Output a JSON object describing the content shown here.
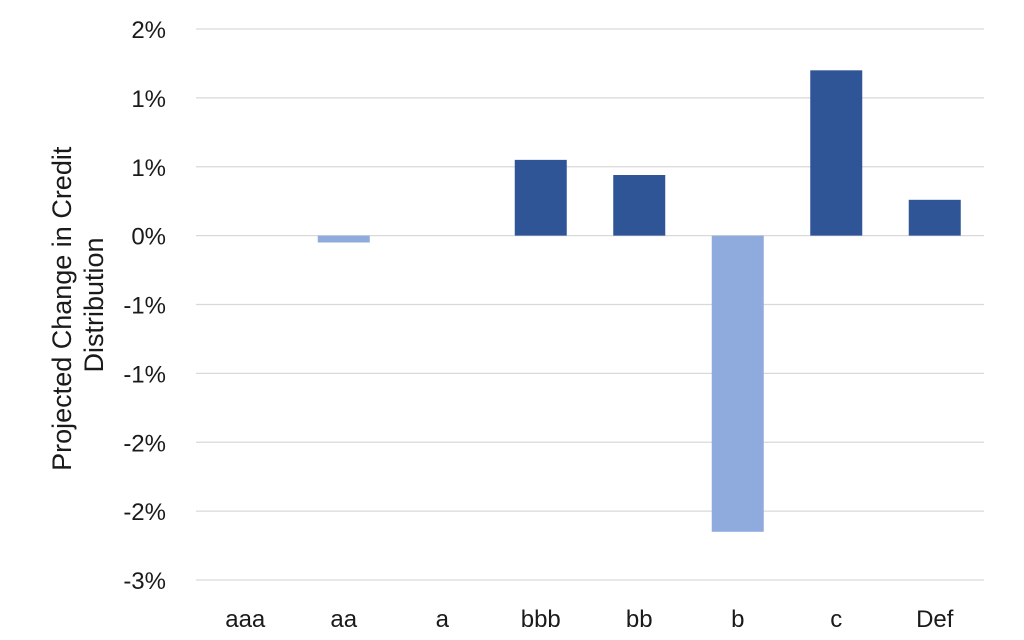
{
  "chart_data": {
    "type": "bar",
    "categories": [
      "aaa",
      "aa",
      "a",
      "bbb",
      "bb",
      "b",
      "c",
      "Def"
    ],
    "values": [
      0,
      -0.05,
      0,
      0.55,
      0.44,
      -2.15,
      1.2,
      0.26
    ],
    "ylabel_lines": [
      "Projected Change in Credit",
      "Distribution"
    ],
    "xlabel": "",
    "ylim": [
      -2.5,
      1.5
    ],
    "y_ticks": [
      {
        "value": 1.5,
        "label": "2%"
      },
      {
        "value": 1.0,
        "label": "1%"
      },
      {
        "value": 0.5,
        "label": "1%"
      },
      {
        "value": 0.0,
        "label": "0%"
      },
      {
        "value": -0.5,
        "label": "-1%"
      },
      {
        "value": -1.0,
        "label": "-1%"
      },
      {
        "value": -1.5,
        "label": "-2%"
      },
      {
        "value": -2.0,
        "label": "-2%"
      },
      {
        "value": -2.5,
        "label": "-3%"
      }
    ],
    "grid": true,
    "legend": "none",
    "colors": {
      "positive": "#2f5597",
      "negative": "#8faadc",
      "grid": "#d9d9d9",
      "text": "#1a1a1a"
    }
  }
}
